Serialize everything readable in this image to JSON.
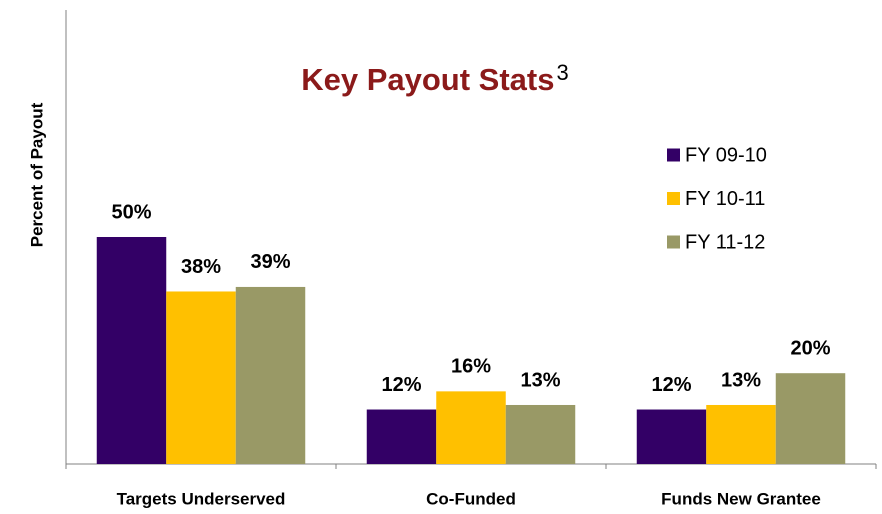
{
  "chart_data": {
    "type": "bar",
    "title": "Key Payout Stats",
    "title_superscript": "3",
    "y_label": "Percent of Payout",
    "categories": [
      "Targets Underserved",
      "Co-Funded",
      "Funds New Grantee"
    ],
    "series": [
      {
        "name": "FY 09-10",
        "color": "#330066",
        "values": [
          50,
          12,
          12
        ],
        "value_labels": [
          "50%",
          "12%",
          "12%"
        ]
      },
      {
        "name": "FY 10-11",
        "color": "#FFC000",
        "values": [
          38,
          16,
          13
        ],
        "value_labels": [
          "38%",
          "16%",
          "13%"
        ]
      },
      {
        "name": "FY 11-12",
        "color": "#999966",
        "values": [
          39,
          13,
          20
        ],
        "value_labels": [
          "39%",
          "13%",
          "20%"
        ]
      }
    ],
    "ylim": [
      0,
      100
    ],
    "legend": "right"
  }
}
